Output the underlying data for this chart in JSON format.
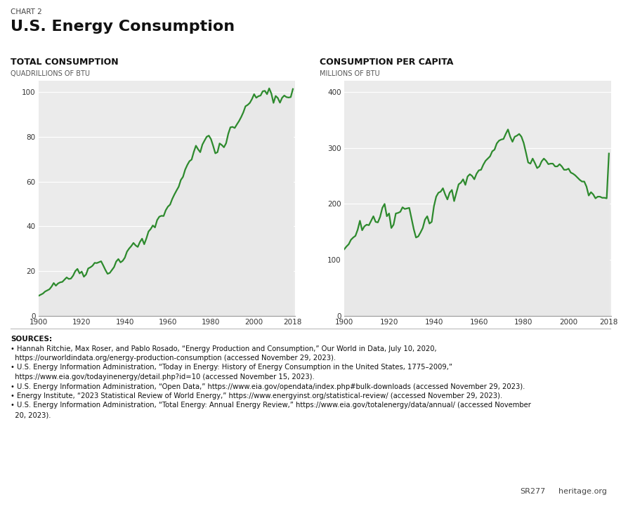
{
  "chart_label": "CHART 2",
  "title": "U.S. Energy Consumption",
  "left_panel_title": "TOTAL CONSUMPTION",
  "left_panel_unit": "QUADRILLIONS OF BTU",
  "right_panel_title": "CONSUMPTION PER CAPITA",
  "right_panel_unit": "MILLIONS OF BTU",
  "line_color": "#2d8a2d",
  "fill_color": "#e8e8e8",
  "background_color": "#ffffff",
  "plot_bg_color": "#ebebeb",
  "grid_color": "#ffffff",
  "left_ylim": [
    0,
    105
  ],
  "left_yticks": [
    0,
    20,
    40,
    60,
    80,
    100
  ],
  "right_ylim": [
    0,
    420
  ],
  "right_yticks": [
    0,
    100,
    200,
    300,
    400
  ],
  "xlim": [
    1900,
    2019
  ],
  "xticks": [
    1900,
    1920,
    1940,
    1960,
    1980,
    2000,
    2018
  ],
  "total_consumption": {
    "years": [
      1900,
      1901,
      1902,
      1903,
      1904,
      1905,
      1906,
      1907,
      1908,
      1909,
      1910,
      1911,
      1912,
      1913,
      1914,
      1915,
      1916,
      1917,
      1918,
      1919,
      1920,
      1921,
      1922,
      1923,
      1924,
      1925,
      1926,
      1927,
      1928,
      1929,
      1930,
      1931,
      1932,
      1933,
      1934,
      1935,
      1936,
      1937,
      1938,
      1939,
      1940,
      1941,
      1942,
      1943,
      1944,
      1945,
      1946,
      1947,
      1948,
      1949,
      1950,
      1951,
      1952,
      1953,
      1954,
      1955,
      1956,
      1957,
      1958,
      1959,
      1960,
      1961,
      1962,
      1963,
      1964,
      1965,
      1966,
      1967,
      1968,
      1969,
      1970,
      1971,
      1972,
      1973,
      1974,
      1975,
      1976,
      1977,
      1978,
      1979,
      1980,
      1981,
      1982,
      1983,
      1984,
      1985,
      1986,
      1987,
      1988,
      1989,
      1990,
      1991,
      1992,
      1993,
      1994,
      1995,
      1996,
      1997,
      1998,
      1999,
      2000,
      2001,
      2002,
      2003,
      2004,
      2005,
      2006,
      2007,
      2008,
      2009,
      2010,
      2011,
      2012,
      2013,
      2014,
      2015,
      2016,
      2017,
      2018
    ],
    "values": [
      9.0,
      9.5,
      10.0,
      10.9,
      11.4,
      11.9,
      13.1,
      14.7,
      13.5,
      14.5,
      15.0,
      15.2,
      16.2,
      17.2,
      16.5,
      16.7,
      18.0,
      20.0,
      21.0,
      19.0,
      19.8,
      17.5,
      18.5,
      21.2,
      21.7,
      22.4,
      23.7,
      23.6,
      24.0,
      24.4,
      22.5,
      20.5,
      18.8,
      19.2,
      20.5,
      21.8,
      24.3,
      25.4,
      23.9,
      24.6,
      26.0,
      28.7,
      30.1,
      31.2,
      32.6,
      31.5,
      30.8,
      33.0,
      34.5,
      32.0,
      34.6,
      37.7,
      38.8,
      40.4,
      39.5,
      42.8,
      44.3,
      44.7,
      44.6,
      47.2,
      48.8,
      49.7,
      52.2,
      54.2,
      56.0,
      57.7,
      60.7,
      62.1,
      65.3,
      67.4,
      69.1,
      69.8,
      73.2,
      76.0,
      74.4,
      73.1,
      76.5,
      78.3,
      80.0,
      80.5,
      78.9,
      75.9,
      72.6,
      73.1,
      77.0,
      76.3,
      75.3,
      77.1,
      81.3,
      84.2,
      84.4,
      83.9,
      85.5,
      87.0,
      88.8,
      90.9,
      93.6,
      94.2,
      95.1,
      96.8,
      99.0,
      97.4,
      98.1,
      98.4,
      100.3,
      100.5,
      99.0,
      101.6,
      99.3,
      95.1,
      98.2,
      97.3,
      95.2,
      97.4,
      98.4,
      97.7,
      97.5,
      97.7,
      101.3
    ]
  },
  "per_capita": {
    "years": [
      1900,
      1901,
      1902,
      1903,
      1904,
      1905,
      1906,
      1907,
      1908,
      1909,
      1910,
      1911,
      1912,
      1913,
      1914,
      1915,
      1916,
      1917,
      1918,
      1919,
      1920,
      1921,
      1922,
      1923,
      1924,
      1925,
      1926,
      1927,
      1928,
      1929,
      1930,
      1931,
      1932,
      1933,
      1934,
      1935,
      1936,
      1937,
      1938,
      1939,
      1940,
      1941,
      1942,
      1943,
      1944,
      1945,
      1946,
      1947,
      1948,
      1949,
      1950,
      1951,
      1952,
      1953,
      1954,
      1955,
      1956,
      1957,
      1958,
      1959,
      1960,
      1961,
      1962,
      1963,
      1964,
      1965,
      1966,
      1967,
      1968,
      1969,
      1970,
      1971,
      1972,
      1973,
      1974,
      1975,
      1976,
      1977,
      1978,
      1979,
      1980,
      1981,
      1982,
      1983,
      1984,
      1985,
      1986,
      1987,
      1988,
      1989,
      1990,
      1991,
      1992,
      1993,
      1994,
      1995,
      1996,
      1997,
      1998,
      1999,
      2000,
      2001,
      2002,
      2003,
      2004,
      2005,
      2006,
      2007,
      2008,
      2009,
      2010,
      2011,
      2012,
      2013,
      2014,
      2015,
      2016,
      2017,
      2018
    ],
    "values": [
      119,
      124,
      128,
      136,
      140,
      143,
      154,
      170,
      153,
      160,
      163,
      162,
      170,
      178,
      168,
      167,
      177,
      193,
      200,
      178,
      183,
      157,
      163,
      183,
      184,
      186,
      194,
      191,
      192,
      193,
      174,
      155,
      140,
      142,
      149,
      157,
      172,
      178,
      165,
      168,
      196,
      213,
      220,
      222,
      228,
      217,
      208,
      220,
      225,
      205,
      220,
      235,
      238,
      244,
      234,
      249,
      253,
      250,
      244,
      254,
      260,
      261,
      270,
      277,
      281,
      285,
      294,
      297,
      308,
      313,
      315,
      316,
      325,
      333,
      320,
      311,
      320,
      322,
      325,
      320,
      309,
      292,
      274,
      272,
      281,
      273,
      264,
      267,
      276,
      281,
      277,
      271,
      272,
      272,
      267,
      267,
      271,
      267,
      261,
      261,
      263,
      256,
      254,
      251,
      247,
      243,
      240,
      240,
      231,
      215,
      221,
      217,
      210,
      213,
      213,
      211,
      211,
      210,
      290
    ]
  },
  "sources_lines": [
    [
      "SOURCES:",
      true
    ],
    [
      "• Hannah Ritchie, Max Roser, and Pablo Rosado, “Energy Production and Consumption,” Our World in Data, July 10, 2020,",
      false
    ],
    [
      "  https://ourworldindata.org/energy-production-consumption (accessed November 29, 2023).",
      false
    ],
    [
      "• U.S. Energy Information Administration, “Today in Energy: History of Energy Consumption in the United States, 1775–2009,”",
      false
    ],
    [
      "  https://www.eia.gov/todayinenergy/detail.php?id=10 (accessed November 15, 2023).",
      false
    ],
    [
      "• U.S. Energy Information Administration, “Open Data,” https://www.eia.gov/opendata/index.php#bulk-downloads (accessed November 29, 2023).",
      false
    ],
    [
      "• Energy Institute, “2023 Statistical Review of World Energy,” https://www.energyinst.org/statistical-review/ (accessed November 29, 2023).",
      false
    ],
    [
      "• U.S. Energy Information Administration, “Total Energy: Annual Energy Review,” https://www.eia.gov/totalenergy/data/annual/ (accessed November",
      false
    ],
    [
      "  20, 2023).",
      false
    ]
  ],
  "footer_left": "SR277",
  "footer_right": "heritage.org"
}
